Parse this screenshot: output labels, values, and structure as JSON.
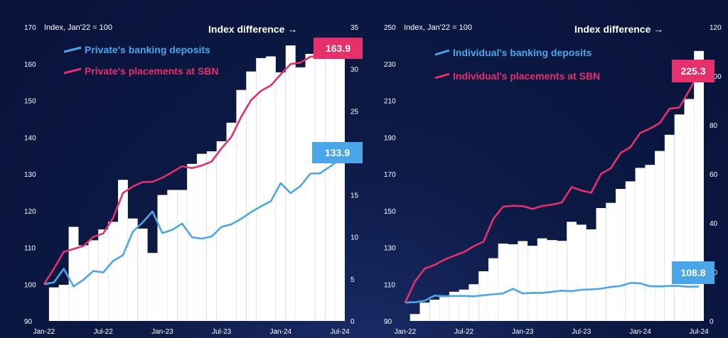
{
  "colors": {
    "background": "#0c1a45",
    "bars": "#ffffff",
    "pink": "#e5306b",
    "blue": "#4aa6e8",
    "axis_text": "#ffffff"
  },
  "chart_data": [
    {
      "type": "bar+line",
      "index_label": "Index, Jan'22 = 100",
      "difference_label": "Index difference →",
      "xlabels": [
        "Jan-22",
        "Jul-22",
        "Jan-23",
        "Jul-23",
        "Jan-24",
        "Jul-24"
      ],
      "ylim_left": [
        90,
        170
      ],
      "yticks_left": [
        90,
        100,
        110,
        120,
        130,
        140,
        150,
        160,
        170
      ],
      "ylim_right": [
        0,
        35
      ],
      "yticks_right": [
        0,
        5,
        10,
        15,
        20,
        25,
        30,
        35
      ],
      "months": 31,
      "series": [
        {
          "name": "Private's banking deposits",
          "color": "blue",
          "end_label": "133.9",
          "values": [
            100,
            100.5,
            104.2,
            99.4,
            101.2,
            103.6,
            103.2,
            106.3,
            107.9,
            114.3,
            116.8,
            119.8,
            113.9,
            114.8,
            116.5,
            112.8,
            112.4,
            113.0,
            115.6,
            116.3,
            117.8,
            119.6,
            121.2,
            122.6,
            127.5,
            124.8,
            126.7,
            130.1,
            130.2,
            132.0,
            133.9
          ]
        },
        {
          "name": "Private's placements at SBN",
          "color": "pink",
          "end_label": "163.9",
          "values": [
            100,
            104.2,
            108.8,
            109.6,
            110.4,
            112.9,
            113.8,
            118.0,
            124.8,
            126.6,
            127.8,
            127.9,
            129.0,
            130.5,
            132.1,
            131.6,
            132.3,
            133.4,
            137.0,
            140.1,
            145.6,
            150.1,
            152.6,
            154.1,
            157.1,
            159.9,
            160.3,
            161.9,
            162.2,
            163.0,
            163.9
          ]
        }
      ],
      "bar_values": [
        0,
        4.0,
        4.3,
        11.2,
        9.0,
        9.6,
        10.9,
        11.8,
        16.8,
        12.2,
        11.0,
        8.1,
        15.0,
        15.6,
        15.6,
        18.7,
        19.9,
        20.2,
        21.4,
        23.6,
        27.5,
        29.7,
        31.3,
        31.5,
        29.6,
        32.8,
        30.2,
        31.8,
        31.9,
        31.5,
        31.8
      ]
    },
    {
      "type": "bar+line",
      "index_label": "Index, Jan'22 = 100",
      "difference_label": "Index difference →",
      "xlabels": [
        "Jan-22",
        "Jul-22",
        "Jan-23",
        "Jul-23",
        "Jan-24",
        "Jul-24"
      ],
      "ylim_left": [
        90,
        250
      ],
      "yticks_left": [
        90,
        110,
        130,
        150,
        170,
        190,
        210,
        230,
        250
      ],
      "ylim_right": [
        0,
        120
      ],
      "yticks_right": [
        0,
        20,
        40,
        60,
        80,
        100,
        120
      ],
      "months": 31,
      "series": [
        {
          "name": "Individual's banking deposits",
          "color": "blue",
          "end_label": "108.8",
          "values": [
            100,
            100.2,
            101.0,
            103.8,
            103.5,
            103.6,
            103.6,
            103.4,
            104.0,
            104.5,
            105.0,
            107.5,
            105.0,
            105.3,
            105.3,
            105.8,
            106.5,
            106.2,
            107.0,
            107.2,
            107.6,
            108.5,
            109.0,
            110.7,
            110.5,
            108.9,
            108.8,
            109.1,
            109.0,
            108.6,
            108.8
          ]
        },
        {
          "name": "Individual's placements at SBN",
          "color": "pink",
          "end_label": "225.3",
          "values": [
            100,
            111.5,
            118.5,
            120.5,
            123.3,
            125.5,
            127.5,
            130.7,
            133.1,
            145.6,
            152.2,
            152.7,
            152.5,
            151.0,
            152.6,
            153.3,
            154.5,
            162.9,
            161.0,
            159.8,
            170.1,
            173.1,
            181.4,
            184.6,
            192.3,
            194.7,
            197.8,
            205.5,
            206.2,
            215.3,
            225.3
          ]
        }
      ],
      "bar_values": [
        0,
        2.8,
        7.5,
        8.7,
        9.8,
        11.9,
        12.8,
        15.0,
        20.3,
        25.6,
        31.6,
        31.3,
        32.6,
        30.7,
        33.7,
        33.0,
        32.7,
        40.5,
        39.3,
        37.4,
        46.1,
        48.2,
        53.9,
        57.0,
        62.5,
        63.7,
        69.4,
        76.0,
        84.3,
        90.6,
        110.2
      ]
    }
  ]
}
